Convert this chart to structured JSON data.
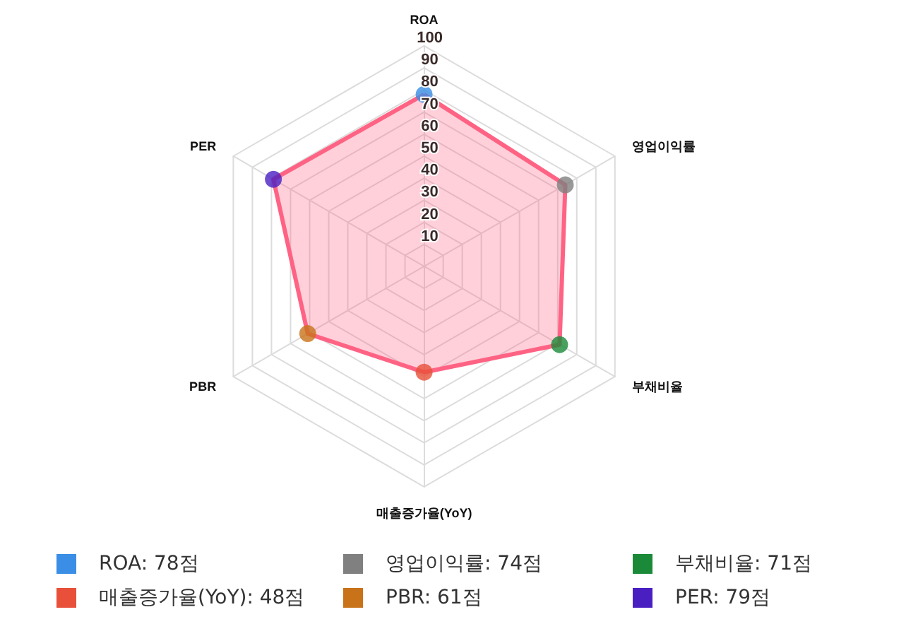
{
  "chart_data": {
    "type": "radar",
    "categories": [
      "ROA",
      "영업이익률",
      "부채비율",
      "매출증가율(YoY)",
      "PBR",
      "PER"
    ],
    "series": [
      {
        "color": "#ff6384",
        "values": [
          78,
          74,
          71,
          48,
          61,
          79
        ],
        "colors": [
          "#3a8ee6",
          "#808080",
          "#1b8a38",
          "#e8503a",
          "#c8731a",
          "#4a1fc2"
        ]
      }
    ],
    "ylim": [
      0,
      100
    ],
    "yticks": [
      10,
      20,
      30,
      40,
      50,
      60,
      70,
      80,
      90,
      100
    ],
    "marker": "circle",
    "grid": true,
    "annotations": [
      "ROA: 78점",
      "영업이익률: 74점",
      "부채비율: 71점",
      "매출증가율(YoY): 48점",
      "PBR: 61점",
      "PER: 79점"
    ]
  }
}
